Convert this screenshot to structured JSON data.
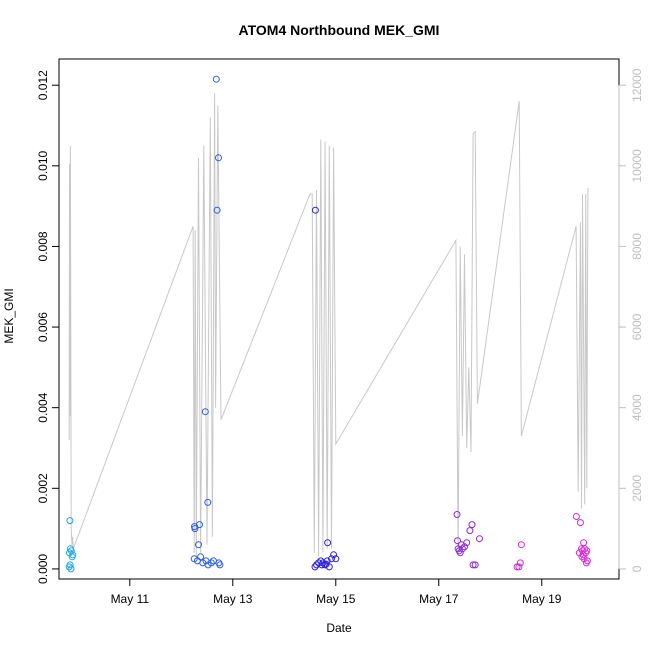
{
  "chart_data": {
    "type": "scatter",
    "title": "ATOM4 Northbound MEK_GMI",
    "xlabel": "Date",
    "ylabel": "MEK_GMI",
    "xlim": [
      "2024-05-09T15:00",
      "2024-05-20T12:00"
    ],
    "ylim": [
      -0.00025,
      0.01265
    ],
    "y2lim": [
      -250,
      12650
    ],
    "grid": false,
    "legend": "none",
    "x_ticks": [
      {
        "label": "May 11",
        "x": "2024-05-11T00:00"
      },
      {
        "label": "May 13",
        "x": "2024-05-13T00:00"
      },
      {
        "label": "May 15",
        "x": "2024-05-15T00:00"
      },
      {
        "label": "May 17",
        "x": "2024-05-17T00:00"
      },
      {
        "label": "May 19",
        "x": "2024-05-19T00:00"
      }
    ],
    "y_ticks": [
      "0.000",
      "0.002",
      "0.004",
      "0.006",
      "0.008",
      "0.010",
      "0.012"
    ],
    "y2_ticks": [
      "0",
      "2000",
      "4000",
      "6000",
      "8000",
      "10000",
      "12000"
    ],
    "line_color": "#c8c8c8",
    "series": [
      {
        "color": "#1fa6e6",
        "points": [
          [
            "2024-05-09T20:06",
            0.0012
          ],
          [
            "2024-05-09T19:50",
            0.0004
          ],
          [
            "2024-05-09T20:20",
            0.0005
          ],
          [
            "2024-05-09T19:45",
            5e-05
          ],
          [
            "2024-05-09T20:10",
            0.0001
          ],
          [
            "2024-05-09T20:35",
            0.0
          ],
          [
            "2024-05-09T21:10",
            0.0003
          ],
          [
            "2024-05-09T21:25",
            0.00035
          ],
          [
            "2024-05-09T20:45",
            0.00045
          ]
        ]
      },
      {
        "color": "#2a5fe6",
        "points": [
          [
            "2024-05-12T16:20",
            0.01215
          ],
          [
            "2024-05-12T17:20",
            0.0102
          ],
          [
            "2024-05-12T16:40",
            0.0089
          ],
          [
            "2024-05-12T11:10",
            0.0039
          ],
          [
            "2024-05-12T12:20",
            0.00165
          ],
          [
            "2024-05-12T08:30",
            0.0011
          ],
          [
            "2024-05-12T06:10",
            0.00105
          ],
          [
            "2024-05-12T06:20",
            0.001
          ],
          [
            "2024-05-12T08:00",
            0.0006
          ],
          [
            "2024-05-12T06:00",
            0.00025
          ],
          [
            "2024-05-12T07:30",
            0.0002
          ],
          [
            "2024-05-12T09:00",
            0.0003
          ],
          [
            "2024-05-12T10:00",
            0.00015
          ],
          [
            "2024-05-12T11:30",
            0.0002
          ],
          [
            "2024-05-12T12:30",
            0.0001
          ],
          [
            "2024-05-12T14:00",
            0.00015
          ],
          [
            "2024-05-12T15:00",
            0.0002
          ],
          [
            "2024-05-12T17:30",
            0.00015
          ],
          [
            "2024-05-12T18:00",
            0.0001
          ]
        ]
      },
      {
        "color": "#2b22d8",
        "points": [
          [
            "2024-05-14T14:30",
            0.0089
          ],
          [
            "2024-05-14T20:10",
            0.00065
          ],
          [
            "2024-05-14T14:20",
            5e-05
          ],
          [
            "2024-05-14T15:00",
            0.0001
          ],
          [
            "2024-05-14T16:00",
            0.00015
          ],
          [
            "2024-05-14T17:00",
            0.0002
          ],
          [
            "2024-05-14T18:00",
            0.00015
          ],
          [
            "2024-05-14T19:00",
            0.0001
          ],
          [
            "2024-05-14T20:00",
            0.0002
          ],
          [
            "2024-05-14T21:00",
            5e-05
          ],
          [
            "2024-05-14T22:00",
            0.00025
          ],
          [
            "2024-05-14T23:00",
            0.00035
          ],
          [
            "2024-05-15T00:00",
            0.00025
          ],
          [
            "2024-05-14T17:30",
            0.0001
          ],
          [
            "2024-05-14T19:30",
            0.00012
          ]
        ]
      },
      {
        "color": "#8f2ad6",
        "points": [
          [
            "2024-05-17T08:30",
            0.00135
          ],
          [
            "2024-05-17T15:30",
            0.0011
          ],
          [
            "2024-05-17T14:30",
            0.00095
          ],
          [
            "2024-05-17T19:00",
            0.00075
          ],
          [
            "2024-05-17T09:00",
            0.0005
          ],
          [
            "2024-05-17T09:30",
            0.00045
          ],
          [
            "2024-05-17T10:30",
            0.0006
          ],
          [
            "2024-05-17T11:00",
            0.0005
          ],
          [
            "2024-05-17T12:00",
            0.00055
          ],
          [
            "2024-05-17T13:00",
            0.00065
          ],
          [
            "2024-05-17T10:00",
            0.0004
          ],
          [
            "2024-05-17T16:00",
            0.0001
          ],
          [
            "2024-05-17T17:00",
            0.0001
          ],
          [
            "2024-05-17T08:45",
            0.0007
          ]
        ]
      },
      {
        "color": "#d82ad8",
        "points": [
          [
            "2024-05-18T14:30",
            0.0006
          ],
          [
            "2024-05-18T12:30",
            5e-05
          ],
          [
            "2024-05-18T13:20",
            5e-05
          ],
          [
            "2024-05-18T14:00",
            0.00015
          ],
          [
            "2024-05-19T16:10",
            0.0013
          ],
          [
            "2024-05-19T18:00",
            0.00115
          ],
          [
            "2024-05-19T19:30",
            0.00065
          ],
          [
            "2024-05-19T17:30",
            0.0004
          ],
          [
            "2024-05-19T18:30",
            0.0005
          ],
          [
            "2024-05-19T19:00",
            0.00045
          ],
          [
            "2024-05-19T20:00",
            0.0005
          ],
          [
            "2024-05-19T20:30",
            0.0004
          ],
          [
            "2024-05-19T21:00",
            0.00045
          ],
          [
            "2024-05-19T18:45",
            0.0003
          ],
          [
            "2024-05-19T19:45",
            0.00025
          ],
          [
            "2024-05-19T20:45",
            0.00015
          ],
          [
            "2024-05-19T21:15",
            0.0002
          ],
          [
            "2024-05-19T19:15",
            0.00035
          ]
        ]
      }
    ],
    "line": [
      [
        "2024-05-09T19:45",
        3200
      ],
      [
        "2024-05-09T19:55",
        10050
      ],
      [
        "2024-05-09T20:10",
        3800
      ],
      [
        "2024-05-09T20:20",
        10500
      ],
      [
        "2024-05-09T20:40",
        1000
      ],
      [
        "2024-05-09T21:00",
        600
      ],
      [
        "2024-05-09T21:20",
        800
      ],
      [
        "2024-05-09T21:40",
        500
      ],
      [
        "2024-05-12T05:30",
        8500
      ],
      [
        "2024-05-12T06:00",
        400
      ],
      [
        "2024-05-12T06:30",
        8400
      ],
      [
        "2024-05-12T07:00",
        300
      ],
      [
        "2024-05-12T08:00",
        10200
      ],
      [
        "2024-05-12T09:00",
        400
      ],
      [
        "2024-05-12T10:30",
        10500
      ],
      [
        "2024-05-12T12:00",
        600
      ],
      [
        "2024-05-12T13:30",
        11200
      ],
      [
        "2024-05-12T14:30",
        800
      ],
      [
        "2024-05-12T15:30",
        11800
      ],
      [
        "2024-05-12T16:00",
        4000
      ],
      [
        "2024-05-12T17:00",
        11500
      ],
      [
        "2024-05-12T18:30",
        3700
      ],
      [
        "2024-05-14T12:00",
        9300
      ],
      [
        "2024-05-14T13:00",
        9300
      ],
      [
        "2024-05-14T14:00",
        400
      ],
      [
        "2024-05-14T15:00",
        9400
      ],
      [
        "2024-05-14T16:00",
        300
      ],
      [
        "2024-05-14T17:00",
        10650
      ],
      [
        "2024-05-14T18:00",
        400
      ],
      [
        "2024-05-14T19:00",
        10600
      ],
      [
        "2024-05-14T20:00",
        500
      ],
      [
        "2024-05-14T21:00",
        10500
      ],
      [
        "2024-05-14T22:00",
        500
      ],
      [
        "2024-05-14T23:00",
        10450
      ],
      [
        "2024-05-15T00:00",
        3100
      ],
      [
        "2024-05-17T08:00",
        8150
      ],
      [
        "2024-05-17T09:00",
        400
      ],
      [
        "2024-05-17T10:00",
        8000
      ],
      [
        "2024-05-17T11:00",
        3300
      ],
      [
        "2024-05-17T12:00",
        7800
      ],
      [
        "2024-05-17T13:00",
        3000
      ],
      [
        "2024-05-17T14:00",
        5000
      ],
      [
        "2024-05-17T15:00",
        2900
      ],
      [
        "2024-05-17T16:00",
        10800
      ],
      [
        "2024-05-17T17:00",
        10850
      ],
      [
        "2024-05-17T18:00",
        4100
      ],
      [
        "2024-05-18T13:30",
        11600
      ],
      [
        "2024-05-18T14:30",
        3300
      ],
      [
        "2024-05-19T16:00",
        8500
      ],
      [
        "2024-05-19T17:00",
        1900
      ],
      [
        "2024-05-19T18:00",
        8600
      ],
      [
        "2024-05-19T18:30",
        1500
      ],
      [
        "2024-05-19T19:00",
        9300
      ],
      [
        "2024-05-19T20:00",
        1600
      ],
      [
        "2024-05-19T20:30",
        9300
      ],
      [
        "2024-05-19T21:00",
        2000
      ],
      [
        "2024-05-19T21:30",
        9450
      ]
    ]
  }
}
